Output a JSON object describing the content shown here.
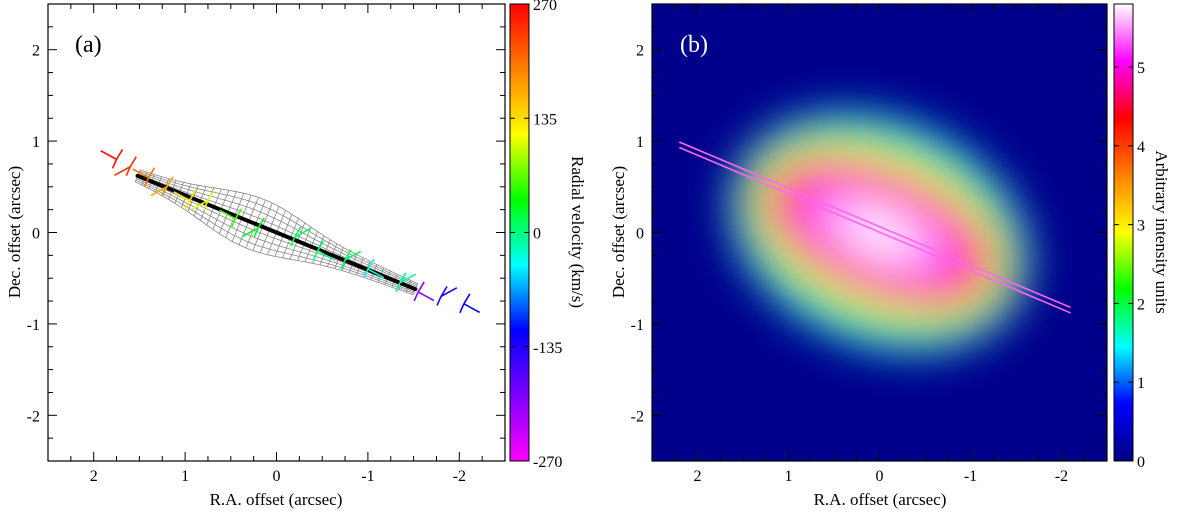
{
  "chart_data": [
    {
      "type": "scatter",
      "panel_label": "(a)",
      "xlabel": "R.A. offset (arcsec)",
      "ylabel": "Dec. offset (arcsec)",
      "xlim": [
        2.5,
        -2.5
      ],
      "ylim": [
        -2.5,
        2.5
      ],
      "xticks": [
        2,
        1,
        0,
        -1,
        -2
      ],
      "xtick_labels": [
        "2",
        "1",
        "0",
        "-1",
        "-2"
      ],
      "yticks": [
        2,
        1,
        0,
        -1,
        -2
      ],
      "ytick_labels": [
        "2",
        "1",
        "0",
        "-1",
        "-2"
      ],
      "colorbar": {
        "label": "Radial velocity (km/s)",
        "range": [
          -270,
          270
        ],
        "ticks": [
          270,
          135,
          0,
          -135,
          -270
        ],
        "tick_labels": [
          "270",
          "135",
          "0",
          "-135",
          "-270"
        ],
        "colors": [
          "#ff00ff",
          "#7f00ff",
          "#0000ff",
          "#00ffff",
          "#00ff00",
          "#ffff00",
          "#ff8000",
          "#ff0000"
        ]
      },
      "axis_line": {
        "x": [
          1.52,
          -1.52
        ],
        "y": [
          0.62,
          -0.62
        ]
      },
      "vectors": [
        {
          "x": 1.75,
          "y": 0.8,
          "v": 260
        },
        {
          "x": 1.6,
          "y": 0.72,
          "v": 240
        },
        {
          "x": 1.4,
          "y": 0.6,
          "v": 200
        },
        {
          "x": 1.2,
          "y": 0.5,
          "v": 170
        },
        {
          "x": 0.95,
          "y": 0.35,
          "v": 130
        },
        {
          "x": 0.75,
          "y": 0.35,
          "v": 110
        },
        {
          "x": 0.45,
          "y": 0.15,
          "v": 60
        },
        {
          "x": 0.2,
          "y": 0.05,
          "v": 30
        },
        {
          "x": -0.2,
          "y": -0.05,
          "v": 10
        },
        {
          "x": -0.45,
          "y": -0.2,
          "v": 0
        },
        {
          "x": -0.75,
          "y": -0.3,
          "v": 5
        },
        {
          "x": -1.0,
          "y": -0.4,
          "v": -30
        },
        {
          "x": -1.35,
          "y": -0.55,
          "v": -10
        },
        {
          "x": -1.55,
          "y": -0.65,
          "v": -200
        },
        {
          "x": -1.8,
          "y": -0.7,
          "v": -130
        },
        {
          "x": -2.05,
          "y": -0.78,
          "v": -120
        }
      ]
    },
    {
      "type": "heatmap",
      "panel_label": "(b)",
      "xlabel": "R.A. offset (arcsec)",
      "ylabel": "Dec. offset (arcsec)",
      "xlim": [
        2.5,
        -2.5
      ],
      "ylim": [
        -2.5,
        2.5
      ],
      "xticks": [
        2,
        1,
        0,
        -1,
        -2
      ],
      "xtick_labels": [
        "2",
        "1",
        "0",
        "-1",
        "-2"
      ],
      "yticks": [
        2,
        1,
        0,
        -1,
        -2
      ],
      "ytick_labels": [
        "2",
        "1",
        "0",
        "-1",
        "-2"
      ],
      "colorbar": {
        "label": "Arbitrary intensity units",
        "range": [
          0,
          5.8
        ],
        "ticks": [
          5,
          4,
          3,
          2,
          1,
          0
        ],
        "tick_labels": [
          "5",
          "4",
          "3",
          "2",
          "1",
          "0"
        ],
        "colors": [
          "#000080",
          "#0000ff",
          "#00ffff",
          "#00ff00",
          "#ffff00",
          "#ff8000",
          "#ff0000",
          "#ff00ff",
          "#ffffff"
        ]
      },
      "source": {
        "center_x": 0.0,
        "center_y": 0.0,
        "half_length": 1.6,
        "pa_slope": -0.42
      },
      "lines": [
        {
          "x": [
            2.2,
            -2.1
          ],
          "y": [
            0.99,
            -0.82
          ]
        },
        {
          "x": [
            2.2,
            -2.1
          ],
          "y": [
            0.93,
            -0.88
          ]
        }
      ],
      "background_color": "#00008b"
    }
  ]
}
